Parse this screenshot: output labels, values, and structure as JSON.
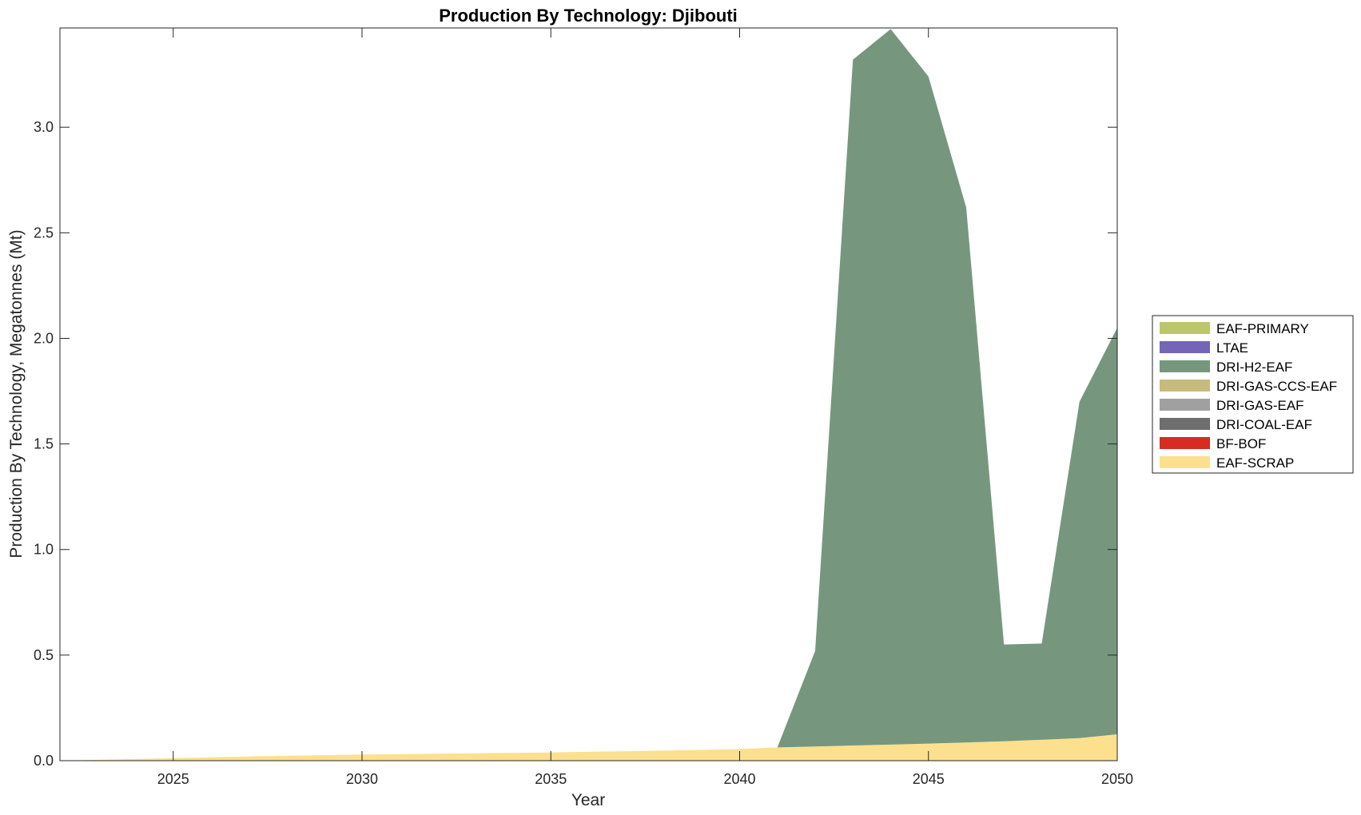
{
  "chart_data": {
    "type": "area",
    "stacked": true,
    "title": "Production By Technology: Djibouti",
    "xlabel": "Year",
    "ylabel": "Production By Technology, Megatonnes (Mt)",
    "xlim": [
      2022,
      2050
    ],
    "ylim": [
      0,
      3.47
    ],
    "x_ticks": [
      2025,
      2030,
      2035,
      2040,
      2045,
      2050
    ],
    "x_tick_labels": [
      "2025",
      "2030",
      "2035",
      "2040",
      "2045",
      "2050"
    ],
    "y_ticks": [
      0,
      0.5,
      1.0,
      1.5,
      2.0,
      2.5,
      3.0
    ],
    "y_tick_labels": [
      "0.0",
      "0.5",
      "1.0",
      "1.5",
      "2.0",
      "2.5",
      "3.0"
    ],
    "grid": false,
    "legend_position": "right",
    "x": [
      2022,
      2023,
      2024,
      2025,
      2026,
      2027,
      2028,
      2029,
      2030,
      2031,
      2032,
      2033,
      2034,
      2035,
      2036,
      2037,
      2038,
      2039,
      2040,
      2041,
      2042,
      2043,
      2044,
      2045,
      2046,
      2047,
      2048,
      2049,
      2050
    ],
    "series": [
      {
        "name": "EAF-SCRAP",
        "color": "#fde08e",
        "values": [
          0.0,
          0.004,
          0.008,
          0.012,
          0.016,
          0.02,
          0.023,
          0.026,
          0.029,
          0.031,
          0.033,
          0.035,
          0.037,
          0.039,
          0.042,
          0.045,
          0.048,
          0.051,
          0.055,
          0.063,
          0.067,
          0.072,
          0.076,
          0.081,
          0.086,
          0.092,
          0.099,
          0.107,
          0.125
        ]
      },
      {
        "name": "BF-BOF",
        "color": "#d62c22",
        "values": [
          0,
          0,
          0,
          0,
          0,
          0,
          0,
          0,
          0,
          0,
          0,
          0,
          0,
          0,
          0,
          0,
          0,
          0,
          0,
          0,
          0,
          0,
          0,
          0,
          0,
          0,
          0,
          0,
          0
        ]
      },
      {
        "name": "DRI-COAL-EAF",
        "color": "#6e6e6e",
        "values": [
          0,
          0,
          0,
          0,
          0,
          0,
          0,
          0,
          0,
          0,
          0,
          0,
          0,
          0,
          0,
          0,
          0,
          0,
          0,
          0,
          0,
          0,
          0,
          0,
          0,
          0,
          0,
          0,
          0
        ]
      },
      {
        "name": "DRI-GAS-EAF",
        "color": "#a0a0a0",
        "values": [
          0,
          0,
          0,
          0,
          0,
          0,
          0,
          0,
          0,
          0,
          0,
          0,
          0,
          0,
          0,
          0,
          0,
          0,
          0,
          0,
          0,
          0,
          0,
          0,
          0,
          0,
          0,
          0,
          0
        ]
      },
      {
        "name": "DRI-GAS-CCS-EAF",
        "color": "#c6bb7c",
        "values": [
          0,
          0,
          0,
          0,
          0,
          0,
          0,
          0,
          0,
          0,
          0,
          0,
          0,
          0,
          0,
          0,
          0,
          0,
          0,
          0,
          0,
          0,
          0,
          0,
          0,
          0,
          0,
          0,
          0
        ]
      },
      {
        "name": "DRI-H2-EAF",
        "color": "#76977e",
        "values": [
          0,
          0,
          0,
          0,
          0,
          0,
          0,
          0,
          0,
          0,
          0,
          0,
          0,
          0,
          0,
          0,
          0,
          0,
          0,
          0,
          0.453,
          3.248,
          3.389,
          3.159,
          2.534,
          0.458,
          0.456,
          1.593,
          1.925
        ]
      },
      {
        "name": "LTAE",
        "color": "#7465b7",
        "values": [
          0,
          0,
          0,
          0,
          0,
          0,
          0,
          0,
          0,
          0,
          0,
          0,
          0,
          0,
          0,
          0,
          0,
          0,
          0,
          0,
          0,
          0,
          0,
          0,
          0,
          0,
          0,
          0,
          0
        ]
      },
      {
        "name": "EAF-PRIMARY",
        "color": "#bcc66a",
        "values": [
          0,
          0,
          0,
          0,
          0,
          0,
          0,
          0,
          0,
          0,
          0,
          0,
          0,
          0,
          0,
          0,
          0,
          0,
          0,
          0,
          0,
          0,
          0,
          0,
          0,
          0,
          0,
          0,
          0
        ]
      }
    ],
    "legend_order": [
      "EAF-PRIMARY",
      "LTAE",
      "DRI-H2-EAF",
      "DRI-GAS-CCS-EAF",
      "DRI-GAS-EAF",
      "DRI-COAL-EAF",
      "BF-BOF",
      "EAF-SCRAP"
    ]
  }
}
